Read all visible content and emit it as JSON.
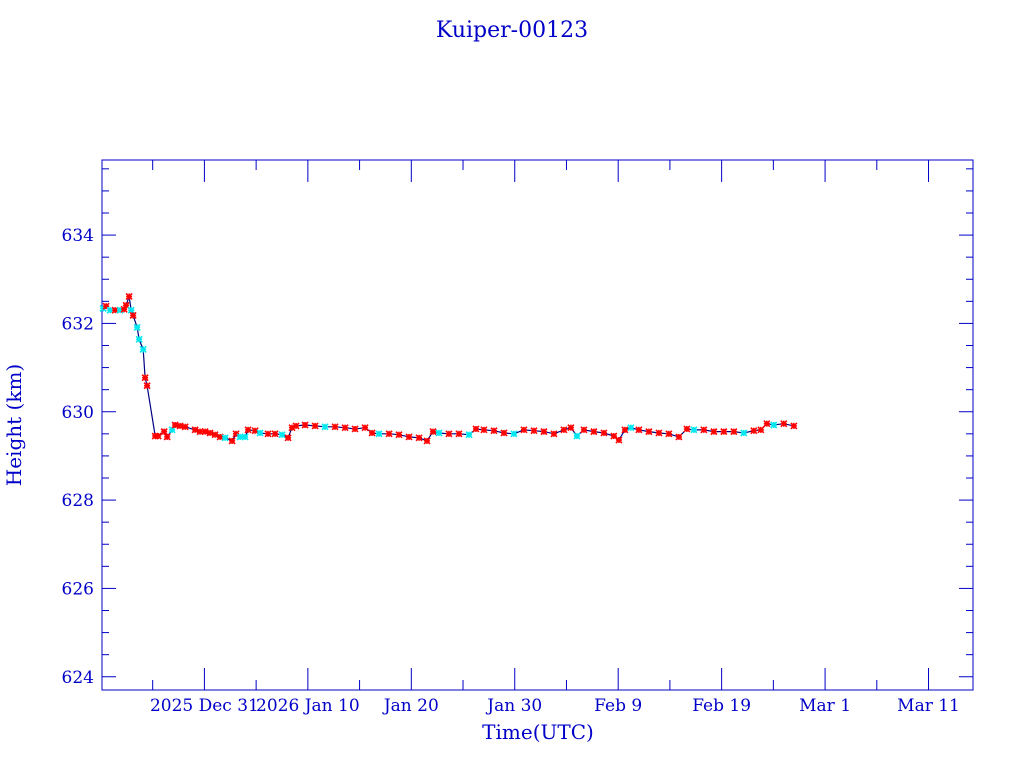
{
  "chart_data": {
    "type": "scatter",
    "title": "Kuiper-00123",
    "xlabel": "Time(UTC)",
    "ylabel": "Height (km)",
    "x_units": "days since 2025 Dec 31",
    "xlim": [
      -9.9,
      74.3
    ],
    "ylim": [
      623.7,
      635.7
    ],
    "x_major_step": 10,
    "x_minor_step": 5,
    "y_major_step": 2,
    "y_minor_step": 0.5,
    "x_ticks": [
      {
        "value": 0,
        "label": "2025 Dec 31"
      },
      {
        "value": 10,
        "label": "2026 Jan 10"
      },
      {
        "value": 20,
        "label": "Jan 20"
      },
      {
        "value": 30,
        "label": "Jan 30"
      },
      {
        "value": 40,
        "label": "Feb  9"
      },
      {
        "value": 50,
        "label": "Feb 19"
      },
      {
        "value": 60,
        "label": "Mar  1"
      },
      {
        "value": 70,
        "label": "Mar 11"
      }
    ],
    "y_ticks": [
      {
        "value": 624,
        "label": "624"
      },
      {
        "value": 626,
        "label": "626"
      },
      {
        "value": 628,
        "label": "628"
      },
      {
        "value": 630,
        "label": "630"
      },
      {
        "value": 632,
        "label": "632"
      },
      {
        "value": 634,
        "label": "634"
      }
    ],
    "colors": {
      "axis": "#0000c8",
      "line": "#000080",
      "r": "#ff0000",
      "c": "#00e8f0"
    },
    "points": [
      [
        -9.79,
        632.34,
        "c"
      ],
      [
        -9.5,
        632.39,
        "r"
      ],
      [
        -9.11,
        632.3,
        "c"
      ],
      [
        -8.63,
        632.3,
        "r"
      ],
      [
        -8.15,
        632.3,
        "c"
      ],
      [
        -7.76,
        632.32,
        "r"
      ],
      [
        -7.57,
        632.41,
        "r"
      ],
      [
        -7.28,
        632.61,
        "r"
      ],
      [
        -7.08,
        632.3,
        "c"
      ],
      [
        -6.89,
        632.18,
        "r"
      ],
      [
        -6.5,
        631.91,
        "c"
      ],
      [
        -6.31,
        631.64,
        "c"
      ],
      [
        -5.92,
        631.41,
        "c"
      ],
      [
        -5.73,
        630.77,
        "r"
      ],
      [
        -5.54,
        630.59,
        "r"
      ],
      [
        -4.76,
        629.45,
        "r"
      ],
      [
        -4.47,
        629.45,
        "r"
      ],
      [
        -3.89,
        629.55,
        "r"
      ],
      [
        -3.6,
        629.43,
        "r"
      ],
      [
        -3.12,
        629.59,
        "c"
      ],
      [
        -2.83,
        629.7,
        "r"
      ],
      [
        -2.35,
        629.68,
        "r"
      ],
      [
        -1.86,
        629.66,
        "r"
      ],
      [
        -0.9,
        629.59,
        "r"
      ],
      [
        -0.42,
        629.55,
        "r"
      ],
      [
        0.07,
        629.55,
        "r"
      ],
      [
        0.55,
        629.52,
        "r"
      ],
      [
        1.03,
        629.48,
        "r"
      ],
      [
        1.52,
        629.43,
        "r"
      ],
      [
        2.0,
        629.41,
        "c"
      ],
      [
        2.68,
        629.34,
        "r"
      ],
      [
        3.06,
        629.5,
        "r"
      ],
      [
        3.45,
        629.43,
        "c"
      ],
      [
        3.93,
        629.43,
        "c"
      ],
      [
        4.22,
        629.59,
        "r"
      ],
      [
        4.9,
        629.57,
        "r"
      ],
      [
        5.38,
        629.52,
        "c"
      ],
      [
        6.15,
        629.5,
        "r"
      ],
      [
        6.83,
        629.5,
        "r"
      ],
      [
        7.51,
        629.48,
        "c"
      ],
      [
        8.09,
        629.41,
        "r"
      ],
      [
        8.47,
        629.64,
        "r"
      ],
      [
        8.86,
        629.68,
        "r"
      ],
      [
        9.73,
        629.7,
        "r"
      ],
      [
        10.7,
        629.68,
        "r"
      ],
      [
        11.66,
        629.66,
        "c"
      ],
      [
        12.63,
        629.66,
        "r"
      ],
      [
        13.6,
        629.64,
        "r"
      ],
      [
        14.56,
        629.61,
        "r"
      ],
      [
        15.53,
        629.64,
        "r"
      ],
      [
        16.21,
        629.52,
        "r"
      ],
      [
        16.88,
        629.5,
        "c"
      ],
      [
        17.85,
        629.5,
        "r"
      ],
      [
        18.81,
        629.48,
        "r"
      ],
      [
        19.78,
        629.43,
        "r"
      ],
      [
        20.75,
        629.41,
        "r"
      ],
      [
        21.52,
        629.34,
        "r"
      ],
      [
        22.1,
        629.55,
        "r"
      ],
      [
        22.68,
        629.52,
        "c"
      ],
      [
        23.64,
        629.5,
        "r"
      ],
      [
        24.61,
        629.5,
        "r"
      ],
      [
        25.58,
        629.48,
        "c"
      ],
      [
        26.25,
        629.61,
        "r"
      ],
      [
        27.02,
        629.59,
        "r"
      ],
      [
        27.99,
        629.57,
        "r"
      ],
      [
        28.96,
        629.52,
        "r"
      ],
      [
        29.92,
        629.5,
        "c"
      ],
      [
        30.89,
        629.59,
        "r"
      ],
      [
        31.86,
        629.57,
        "r"
      ],
      [
        32.82,
        629.55,
        "r"
      ],
      [
        33.79,
        629.5,
        "r"
      ],
      [
        34.75,
        629.59,
        "r"
      ],
      [
        35.43,
        629.64,
        "r"
      ],
      [
        36.01,
        629.45,
        "c"
      ],
      [
        36.69,
        629.59,
        "r"
      ],
      [
        37.65,
        629.55,
        "r"
      ],
      [
        38.62,
        629.52,
        "r"
      ],
      [
        39.58,
        629.45,
        "r"
      ],
      [
        40.07,
        629.36,
        "r"
      ],
      [
        40.65,
        629.59,
        "r"
      ],
      [
        41.23,
        629.64,
        "c"
      ],
      [
        42.0,
        629.59,
        "r"
      ],
      [
        42.97,
        629.55,
        "r"
      ],
      [
        43.94,
        629.52,
        "r"
      ],
      [
        44.9,
        629.5,
        "r"
      ],
      [
        45.87,
        629.43,
        "r"
      ],
      [
        46.64,
        629.61,
        "r"
      ],
      [
        47.32,
        629.59,
        "c"
      ],
      [
        48.28,
        629.59,
        "r"
      ],
      [
        49.25,
        629.55,
        "r"
      ],
      [
        50.21,
        629.55,
        "r"
      ],
      [
        51.18,
        629.55,
        "r"
      ],
      [
        52.14,
        629.52,
        "c"
      ],
      [
        53.11,
        629.57,
        "r"
      ],
      [
        53.79,
        629.59,
        "r"
      ],
      [
        54.37,
        629.73,
        "r"
      ],
      [
        55.04,
        629.7,
        "c"
      ],
      [
        56.01,
        629.73,
        "r"
      ],
      [
        56.98,
        629.68,
        "r"
      ]
    ]
  }
}
